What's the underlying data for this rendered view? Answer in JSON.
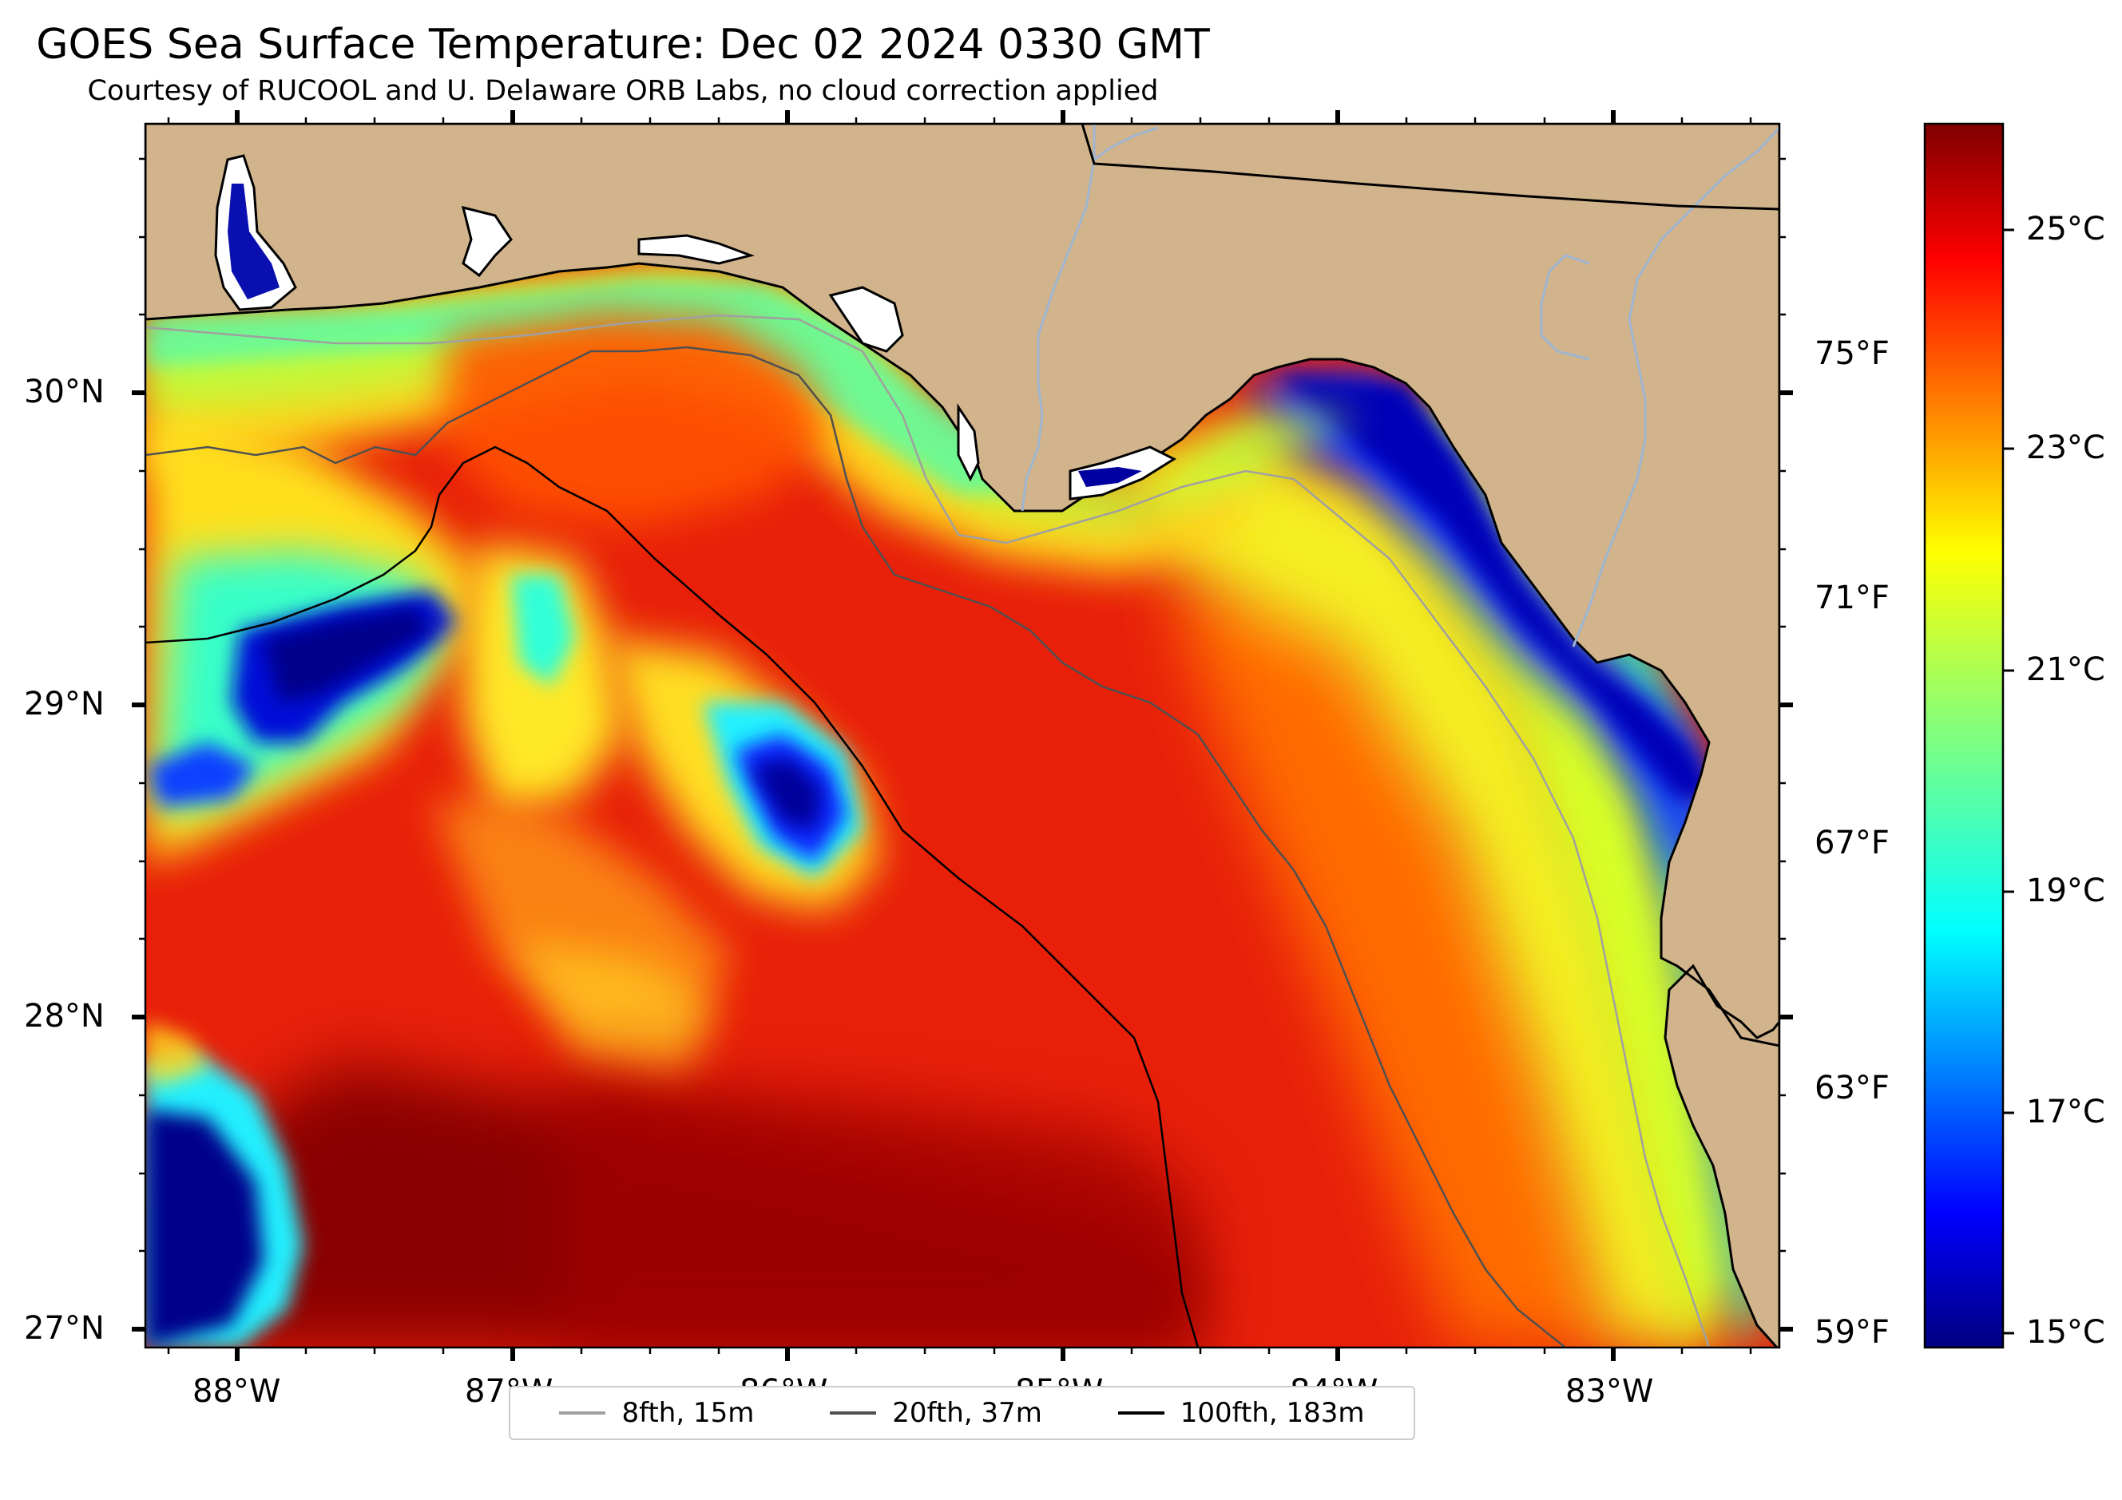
{
  "title": "GOES Sea Surface Temperature: Dec 02 2024 0330 GMT",
  "subtitle": "Courtesy of RUCOOL and U. Delaware ORB Labs, no cloud correction applied",
  "map": {
    "lon_range": [
      -88.33,
      -82.38
    ],
    "lat_range": [
      26.93,
      30.85
    ],
    "x_ticks": [
      "88°W",
      "87°W",
      "86°W",
      "85°W",
      "84°W",
      "83°W"
    ],
    "y_ticks": [
      "30°N",
      "29°N",
      "28°N",
      "27°N"
    ],
    "land_color": "#d2b48c",
    "coast_color": "#000000",
    "river_color": "#9fb5d0"
  },
  "colorbar": {
    "min_c": 14.8,
    "max_c": 26.0,
    "celsius_ticks": [
      "25°C",
      "23°C",
      "21°C",
      "19°C",
      "17°C",
      "15°C"
    ],
    "fahrenheit_ticks": [
      "75°F",
      "71°F",
      "67°F",
      "63°F",
      "59°F"
    ],
    "colormap": "jet"
  },
  "legend": [
    {
      "label": "8fth, 15m",
      "color": "#a0a0a0"
    },
    {
      "label": "20fth, 37m",
      "color": "#505050"
    },
    {
      "label": "100fth, 183m",
      "color": "#000000"
    }
  ]
}
